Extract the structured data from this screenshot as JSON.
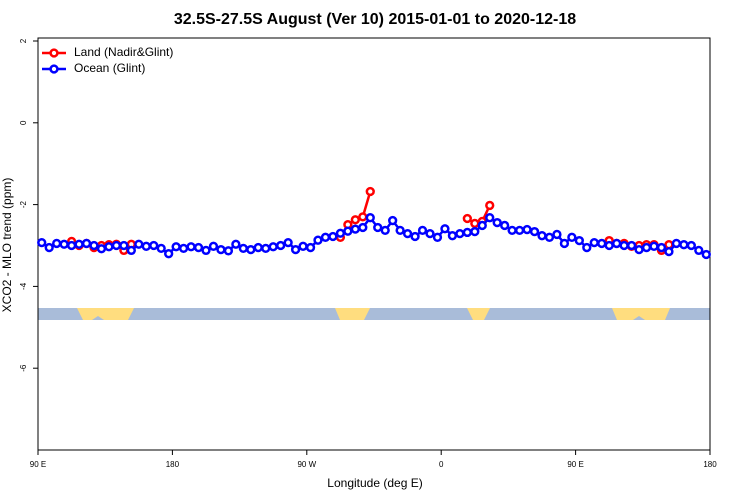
{
  "chart_data": {
    "type": "line",
    "title": "32.5S-27.5S August (Ver 10)   2015-01-01 to 2020-12-18",
    "x_label": "Longitude (deg E)",
    "y_label": "XCO2 - MLO trend (ppm)",
    "xlim": [
      90,
      540
    ],
    "xticks": [
      {
        "value": 90,
        "label": "90 E"
      },
      180,
      {
        "value": 270,
        "label": "90 W"
      },
      {
        "value": 360,
        "label": "0"
      },
      {
        "value": 450,
        "label": "90 E"
      },
      {
        "value": 540,
        "label": "180"
      }
    ],
    "ylim": [
      -8,
      2
    ],
    "yticks": [
      2,
      0,
      -2,
      -4,
      -6
    ],
    "legend": "top-left",
    "x": [
      92.5,
      97.5,
      102.5,
      107.5,
      112.5,
      117.5,
      122.5,
      127.5,
      132.5,
      137.5,
      142.5,
      147.5,
      152.5,
      157.5,
      162.5,
      167.5,
      172.5,
      177.5,
      182.5,
      187.5,
      192.5,
      197.5,
      202.5,
      207.5,
      212.5,
      217.5,
      222.5,
      227.5,
      232.5,
      237.5,
      242.5,
      247.5,
      252.5,
      257.5,
      262.5,
      267.5,
      272.5,
      277.5,
      282.5,
      287.5,
      292.5,
      297.5,
      302.5,
      307.5,
      312.5,
      317.5,
      322.5,
      327.5,
      332.5,
      337.5,
      342.5,
      347.5,
      352.5,
      357.5,
      362.5,
      367.5,
      372.5,
      377.5,
      382.5,
      387.5,
      392.5,
      397.5,
      402.5,
      407.5,
      412.5,
      417.5,
      422.5,
      427.5,
      432.5,
      437.5,
      442.5,
      447.5,
      452.5,
      457.5,
      462.5,
      467.5,
      472.5,
      477.5,
      482.5,
      487.5,
      492.5,
      497.5,
      502.5,
      507.5,
      512.5,
      517.5,
      522.5,
      527.5,
      532.5,
      537.5
    ],
    "series": [
      {
        "name": "Land (Nadir&Glint)",
        "color": "#ff0000",
        "values": [
          null,
          null,
          null,
          null,
          -2.9,
          -3.0,
          -2.95,
          -3.05,
          -3.0,
          -2.98,
          -2.97,
          -3.12,
          -2.97,
          null,
          null,
          null,
          null,
          null,
          null,
          null,
          null,
          null,
          null,
          null,
          null,
          null,
          null,
          null,
          null,
          null,
          null,
          null,
          null,
          null,
          null,
          null,
          null,
          null,
          null,
          null,
          -2.8,
          -2.49,
          -2.37,
          -2.3,
          -1.68,
          null,
          null,
          null,
          null,
          null,
          null,
          null,
          null,
          null,
          null,
          null,
          null,
          -2.34,
          -2.46,
          -2.41,
          -2.02,
          null,
          null,
          null,
          null,
          null,
          null,
          null,
          null,
          null,
          null,
          null,
          null,
          null,
          null,
          null,
          -2.88,
          -2.95,
          -2.95,
          -3.02,
          -3.0,
          -2.98,
          -2.98,
          -3.12,
          -2.98,
          null,
          null,
          null,
          null,
          null
        ]
      },
      {
        "name": "Ocean (Glint)",
        "color": "#0000ff",
        "values": [
          -2.93,
          -3.05,
          -2.95,
          -2.97,
          -3.0,
          -2.97,
          -2.95,
          -3.0,
          -3.08,
          -3.03,
          -3.0,
          -3.0,
          -3.12,
          -2.97,
          -3.02,
          -3.0,
          -3.07,
          -3.2,
          -3.03,
          -3.07,
          -3.03,
          -3.05,
          -3.12,
          -3.02,
          -3.1,
          -3.13,
          -2.97,
          -3.07,
          -3.1,
          -3.05,
          -3.07,
          -3.03,
          -3.0,
          -2.93,
          -3.1,
          -3.02,
          -3.05,
          -2.87,
          -2.8,
          -2.78,
          -2.7,
          -2.65,
          -2.6,
          -2.56,
          -2.32,
          -2.56,
          -2.63,
          -2.39,
          -2.63,
          -2.71,
          -2.78,
          -2.63,
          -2.71,
          -2.8,
          -2.59,
          -2.76,
          -2.71,
          -2.68,
          -2.66,
          -2.51,
          -2.32,
          -2.44,
          -2.51,
          -2.63,
          -2.63,
          -2.61,
          -2.66,
          -2.76,
          -2.8,
          -2.73,
          -2.95,
          -2.8,
          -2.88,
          -3.05,
          -2.93,
          -2.95,
          -3.0,
          -2.95,
          -3.0,
          -3.0,
          -3.1,
          -3.05,
          -3.02,
          -3.05,
          -3.15,
          -2.95,
          -2.98,
          -3.0,
          -3.12,
          -3.22
        ]
      }
    ]
  }
}
